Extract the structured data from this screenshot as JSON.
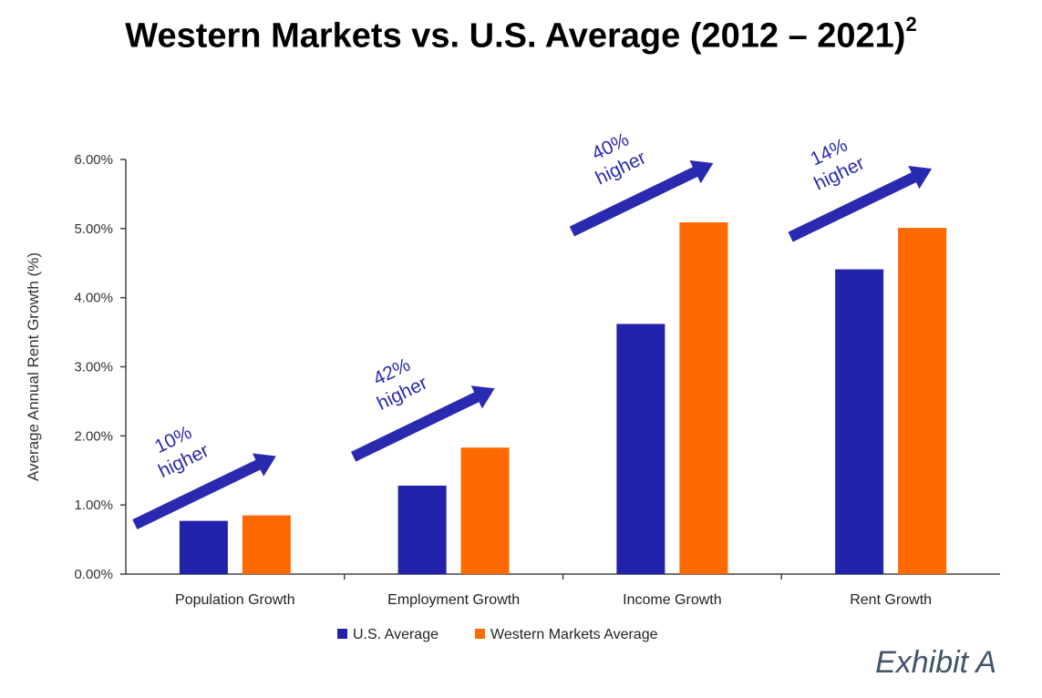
{
  "title": "Western Markets vs. U.S. Average (2012 – 2021)",
  "title_superscript": "2",
  "exhibit_label": "Exhibit A",
  "colors": {
    "us": "#2222aa",
    "western": "#ff6a00",
    "arrow": "#2a2ab0",
    "arrow_text": "#2a2ab0",
    "axis": "#444444"
  },
  "chart_data": {
    "type": "bar",
    "ylabel": "Average Annual Rent Growth (%)",
    "xlabel": "",
    "ylim": [
      0,
      6
    ],
    "yticks": [
      "0.00%",
      "1.00%",
      "2.00%",
      "3.00%",
      "4.00%",
      "5.00%",
      "6.00%"
    ],
    "grid": false,
    "legend_position": "bottom",
    "categories": [
      "Population Growth",
      "Employment Growth",
      "Income Growth",
      "Rent Growth"
    ],
    "series": [
      {
        "name": "U.S. Average",
        "values": [
          0.77,
          1.28,
          3.62,
          4.41
        ]
      },
      {
        "name": "Western Markets Average",
        "values": [
          0.85,
          1.83,
          5.09,
          5.01
        ]
      }
    ],
    "annotations": [
      {
        "category": "Population Growth",
        "line1": "10%",
        "line2": "higher"
      },
      {
        "category": "Employment Growth",
        "line1": "42%",
        "line2": "higher"
      },
      {
        "category": "Income Growth",
        "line1": "40%",
        "line2": "higher"
      },
      {
        "category": "Rent Growth",
        "line1": "14%",
        "line2": "higher"
      }
    ]
  }
}
